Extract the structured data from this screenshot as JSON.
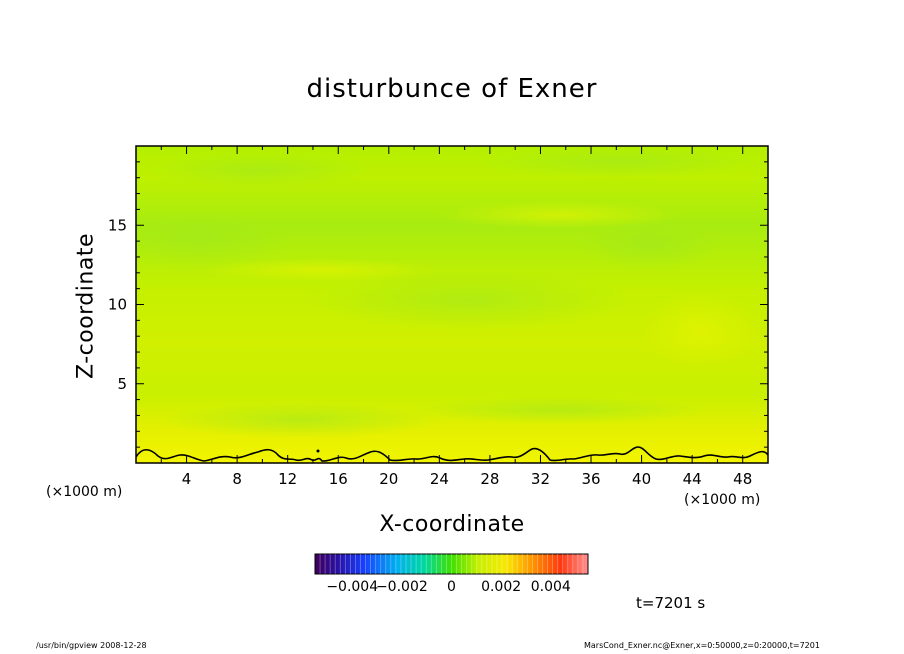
{
  "chart_data": {
    "type": "heatmap",
    "title": "disturbunce of Exner",
    "xlabel": "X-coordinate",
    "ylabel": "Z-coordinate",
    "x_unit_left": "(×1000 m)",
    "x_unit_right": "(×1000 m)",
    "xlim": [
      0,
      50
    ],
    "ylim": [
      0,
      20
    ],
    "x_ticks": [
      4,
      8,
      12,
      16,
      20,
      24,
      28,
      32,
      36,
      40,
      44,
      48
    ],
    "x_tick_labels": [
      "4",
      "8",
      "12",
      "16",
      "20",
      "24",
      "28",
      "32",
      "36",
      "40",
      "44",
      "48"
    ],
    "y_ticks": [
      5,
      10,
      15
    ],
    "y_tick_labels": [
      "5",
      "10",
      "15"
    ],
    "colorbar": {
      "range": [
        -0.0055,
        0.0055
      ],
      "tick_values": [
        -0.004,
        -0.002,
        0,
        0.002,
        0.004
      ],
      "tick_labels": [
        "−0.004",
        "−0.002",
        "0",
        "0.002",
        "0.004"
      ]
    },
    "field_bands": [
      {
        "z_range": [
          17,
          20
        ],
        "value": 0.0008
      },
      {
        "z_range": [
          11,
          17
        ],
        "value": 0.0009
      },
      {
        "z_range": [
          5,
          11
        ],
        "value": 0.0006
      },
      {
        "z_range": [
          1.5,
          5
        ],
        "value": 0.0004
      },
      {
        "z_range": [
          0,
          1.5
        ],
        "value": 0.0002
      }
    ],
    "time_label": "t=7201 s"
  },
  "footer": {
    "left": "/usr/bin/gpview   2008-12-28",
    "right": "MarsCond_Exner.nc@Exner,x=0:50000,z=0:20000,t=7201"
  }
}
